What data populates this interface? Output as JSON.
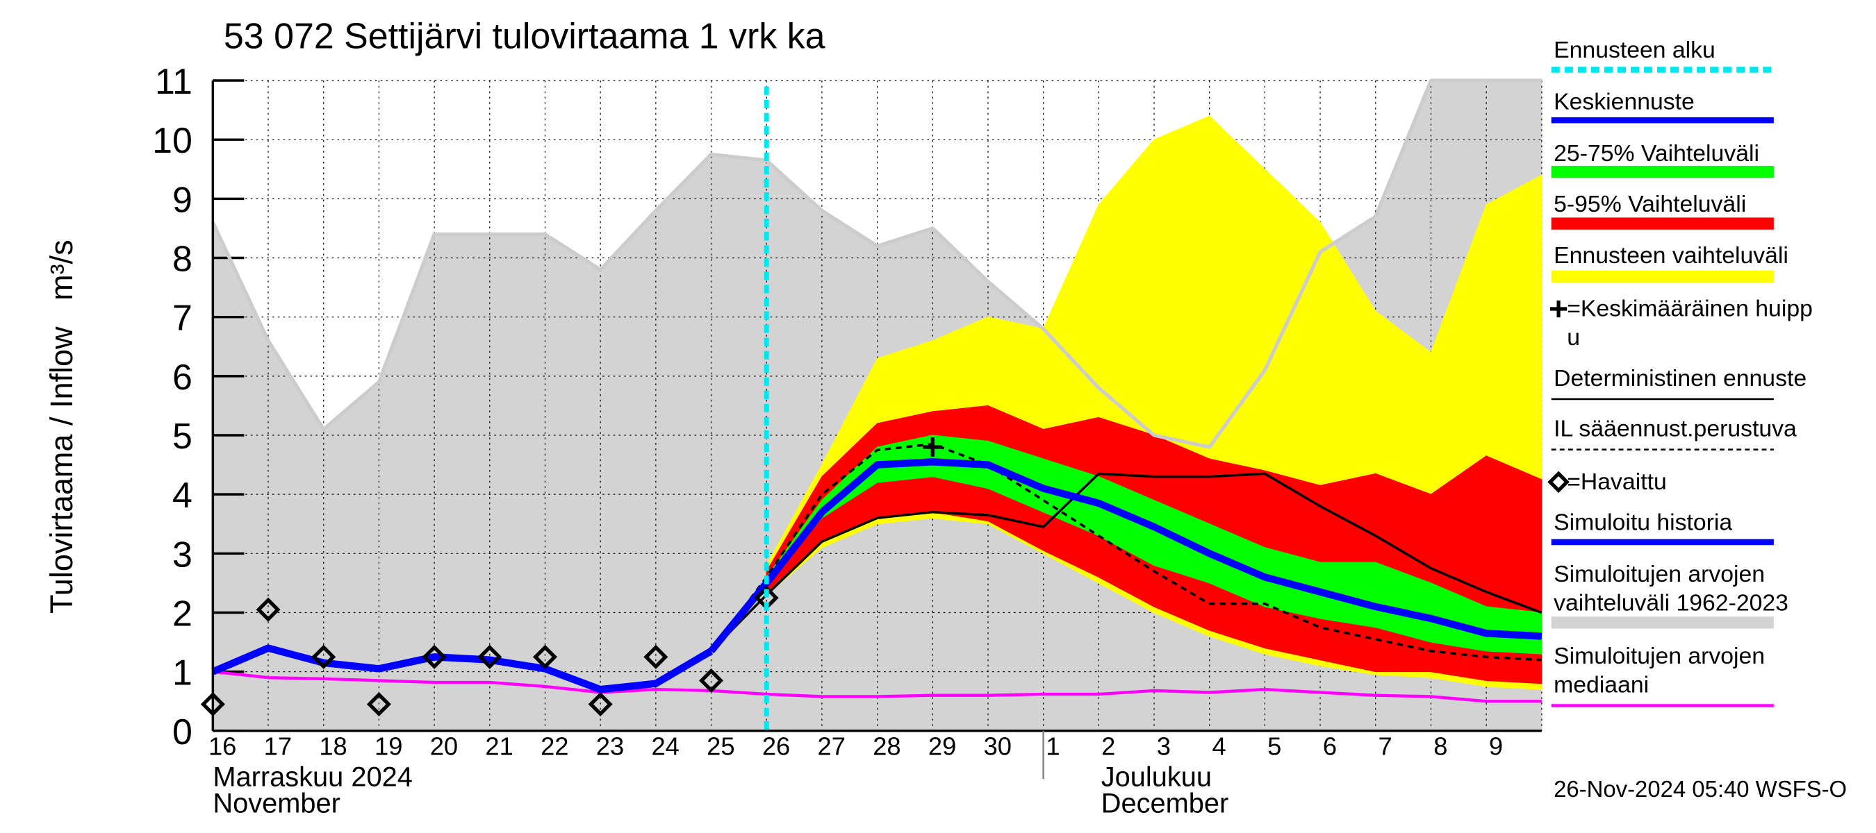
{
  "chart_data": {
    "type": "line",
    "title": "53 072 Settijärvi tulovirtaama 1 vrk ka",
    "y_label": "Tulovirtaama / Inflow   m³/s",
    "categories": [
      "16",
      "17",
      "18",
      "19",
      "20",
      "21",
      "22",
      "23",
      "24",
      "25",
      "26",
      "27",
      "28",
      "29",
      "30",
      "1",
      "2",
      "3",
      "4",
      "5",
      "6",
      "7",
      "8",
      "9",
      null
    ],
    "months": [
      {
        "fi": "Marraskuu 2024",
        "en": "November"
      },
      {
        "fi": "Joulukuu",
        "en": "December"
      }
    ],
    "timestamp": "26-Nov-2024 05:40 WSFS-O",
    "ylim": [
      0,
      11
    ],
    "yticks": [
      0,
      1,
      2,
      3,
      4,
      5,
      6,
      7,
      8,
      9,
      10,
      11
    ],
    "grid": true,
    "series": [
      {
        "name": "Ennusteen alku",
        "kind": "vline",
        "color": "#00e8ee",
        "x": "26"
      },
      {
        "name": "Keskiennuste",
        "kind": "line",
        "color": "#0000ff",
        "values": [
          null,
          null,
          null,
          null,
          null,
          null,
          null,
          null,
          null,
          1.35,
          2.5,
          3.7,
          4.5,
          4.55,
          4.5,
          4.1,
          3.85,
          3.45,
          3.0,
          2.6,
          2.35,
          2.1,
          1.9,
          1.65,
          1.6
        ]
      },
      {
        "name": "25-75% Vaihteluväli",
        "kind": "band",
        "color": "#00ff00",
        "high": [
          null,
          null,
          null,
          null,
          null,
          null,
          null,
          null,
          null,
          null,
          2.6,
          3.9,
          4.8,
          5.0,
          4.9,
          4.6,
          4.3,
          3.9,
          3.5,
          3.1,
          2.85,
          2.85,
          2.5,
          2.1,
          2.0
        ],
        "low": [
          null,
          null,
          null,
          null,
          null,
          null,
          null,
          null,
          null,
          null,
          2.5,
          3.6,
          4.2,
          4.3,
          4.1,
          3.7,
          3.3,
          2.8,
          2.5,
          2.1,
          1.9,
          1.75,
          1.5,
          1.35,
          1.3
        ]
      },
      {
        "name": "5-95% Vaihteluväli",
        "kind": "band",
        "color": "#ff0000",
        "high": [
          null,
          null,
          null,
          null,
          null,
          null,
          null,
          null,
          null,
          null,
          2.7,
          4.3,
          5.2,
          5.4,
          5.5,
          5.1,
          5.3,
          5.0,
          4.6,
          4.4,
          4.15,
          4.35,
          4.0,
          4.65,
          4.25
        ],
        "low": [
          null,
          null,
          null,
          null,
          null,
          null,
          null,
          null,
          null,
          null,
          2.3,
          3.2,
          3.6,
          3.7,
          3.55,
          3.05,
          2.6,
          2.1,
          1.7,
          1.4,
          1.2,
          1.0,
          1.0,
          0.85,
          0.8
        ]
      },
      {
        "name": "Ennusteen vaihteluväli",
        "kind": "band",
        "color": "#ffff00",
        "high": [
          null,
          null,
          null,
          null,
          null,
          null,
          null,
          null,
          null,
          null,
          2.8,
          4.5,
          6.3,
          6.6,
          7.0,
          6.8,
          8.9,
          10.0,
          10.4,
          9.5,
          8.6,
          7.1,
          6.4,
          8.9,
          9.4
        ],
        "low": [
          null,
          null,
          null,
          null,
          null,
          null,
          null,
          null,
          null,
          null,
          2.3,
          3.1,
          3.5,
          3.6,
          3.5,
          3.0,
          2.5,
          2.0,
          1.6,
          1.3,
          1.1,
          0.95,
          0.9,
          0.75,
          0.7
        ]
      },
      {
        "name": "=Keskimääräinen huippu",
        "kind": "peak",
        "color": "#000000",
        "values": [
          null,
          null,
          null,
          null,
          null,
          null,
          null,
          null,
          null,
          null,
          null,
          null,
          null,
          4.8,
          null,
          null,
          null,
          null,
          null,
          null,
          null,
          null,
          null,
          null,
          null
        ]
      },
      {
        "name": "Deterministinen ennuste",
        "kind": "line",
        "color": "#000000",
        "values": [
          null,
          null,
          null,
          null,
          null,
          null,
          null,
          null,
          null,
          1.35,
          2.3,
          3.2,
          3.6,
          3.7,
          3.65,
          3.45,
          4.35,
          4.3,
          4.3,
          4.35,
          3.8,
          3.3,
          2.75,
          2.35,
          2.0
        ]
      },
      {
        "name": "IL sääennust.perustuva",
        "kind": "dashed",
        "color": "#000000",
        "values": [
          null,
          null,
          null,
          null,
          null,
          null,
          null,
          null,
          null,
          1.35,
          2.6,
          4.0,
          4.75,
          4.85,
          4.5,
          3.9,
          3.3,
          2.7,
          2.15,
          2.15,
          1.75,
          1.55,
          1.35,
          1.25,
          1.2
        ]
      },
      {
        "name": "=Havaittu",
        "kind": "markers",
        "color": "#000000",
        "values": [
          0.45,
          2.05,
          1.25,
          0.45,
          1.25,
          1.25,
          1.25,
          0.45,
          1.25,
          0.85,
          2.25,
          null,
          null,
          null,
          null,
          null,
          null,
          null,
          null,
          null,
          null,
          null,
          null,
          null,
          null
        ]
      },
      {
        "name": "Simuloitu historia",
        "kind": "line",
        "color": "#0000ff",
        "values": [
          1.0,
          1.4,
          1.15,
          1.05,
          1.25,
          1.2,
          1.05,
          0.7,
          0.8,
          1.35,
          null,
          null,
          null,
          null,
          null,
          null,
          null,
          null,
          null,
          null,
          null,
          null,
          null,
          null,
          null
        ]
      },
      {
        "name": "Simuloitujen arvojen vaihteluväli 1962-2023",
        "kind": "band",
        "color": "#d3d3d3",
        "high": [
          8.6,
          6.6,
          5.1,
          5.9,
          8.4,
          8.4,
          8.4,
          7.8,
          8.8,
          9.75,
          9.65,
          8.8,
          8.2,
          8.5,
          7.6,
          6.8,
          5.8,
          5.0,
          4.8,
          6.1,
          8.1,
          8.7,
          11,
          11,
          11
        ],
        "low": [
          0,
          0,
          0,
          0,
          0,
          0,
          0,
          0,
          0,
          0,
          0,
          0,
          0,
          0,
          0,
          0,
          0,
          0,
          0,
          0,
          0,
          0,
          0,
          0,
          0
        ]
      },
      {
        "name": "Simuloitujen arvojen mediaani",
        "kind": "line",
        "color": "#ff00ff",
        "values": [
          1.0,
          0.9,
          0.88,
          0.85,
          0.82,
          0.82,
          0.75,
          0.65,
          0.7,
          0.68,
          0.62,
          0.58,
          0.58,
          0.6,
          0.6,
          0.62,
          0.62,
          0.68,
          0.65,
          0.7,
          0.65,
          0.6,
          0.58,
          0.5,
          0.5
        ]
      }
    ]
  }
}
